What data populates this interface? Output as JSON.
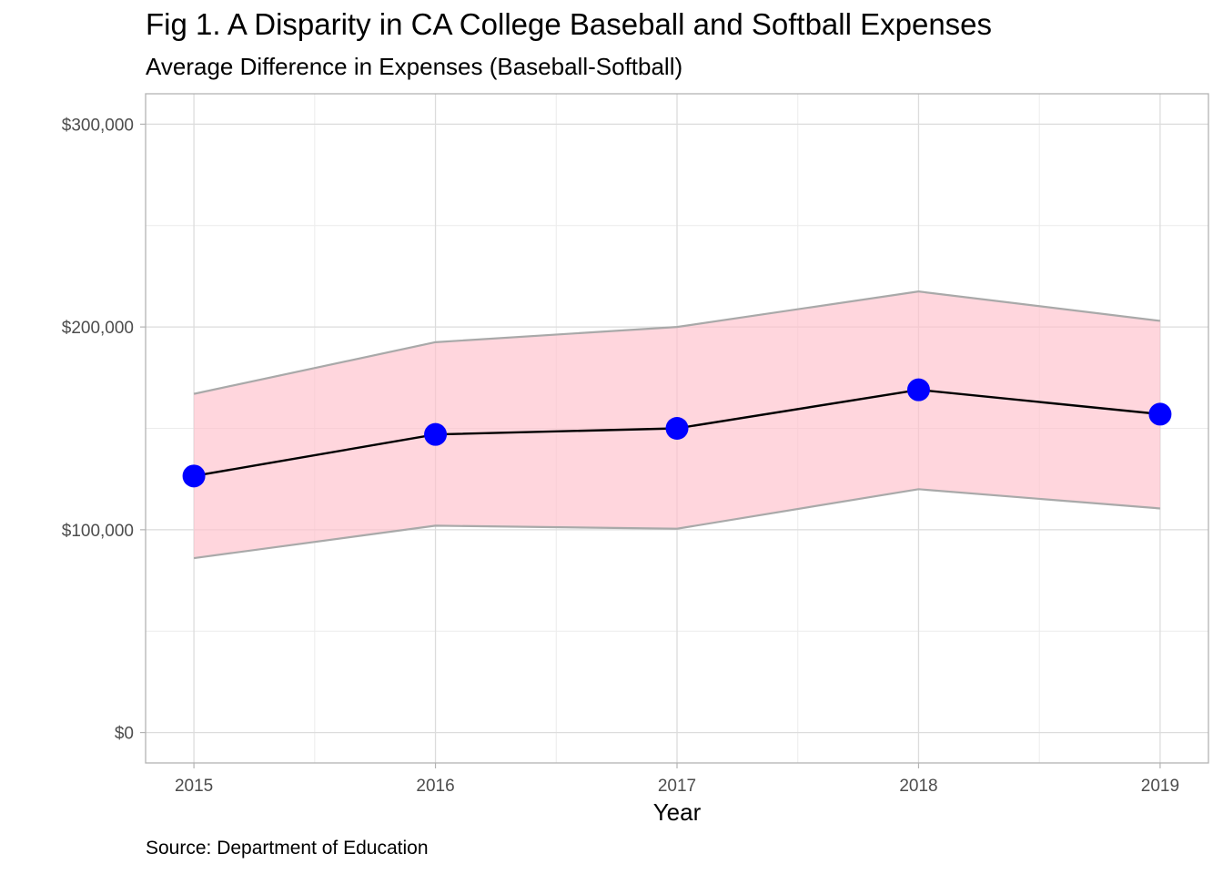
{
  "chart_data": {
    "type": "line",
    "title": "Fig 1. A Disparity in CA College Baseball and Softball Expenses",
    "subtitle": "Average Difference in Expenses (Baseball-Softball)",
    "caption": "Source: Department of Education",
    "xlabel": "Year",
    "ylabel": "",
    "x": [
      2015,
      2016,
      2017,
      2018,
      2019
    ],
    "x_tick_labels": [
      "2015",
      "2016",
      "2017",
      "2018",
      "2019"
    ],
    "y_ticks": [
      0,
      100000,
      200000,
      300000
    ],
    "y_tick_labels": [
      "$0",
      "$100,000",
      "$200,000",
      "$300,000"
    ],
    "xlim": [
      2014.8,
      2019.2
    ],
    "ylim": [
      -15000,
      315000
    ],
    "series": [
      {
        "values": [
          126500,
          147000,
          150000,
          169000,
          157000
        ],
        "lower": [
          86000,
          102000,
          100500,
          120000,
          110500
        ],
        "upper": [
          167000,
          192500,
          200000,
          217500,
          203000
        ]
      }
    ],
    "grid": true,
    "colors": {
      "point": "#0000ff",
      "line": "#000000",
      "band_fill": "#ffc0cb",
      "band_edge": "#a9a9a9",
      "grid": "#dcdcdc",
      "panel_border": "#b3b3b3"
    }
  }
}
